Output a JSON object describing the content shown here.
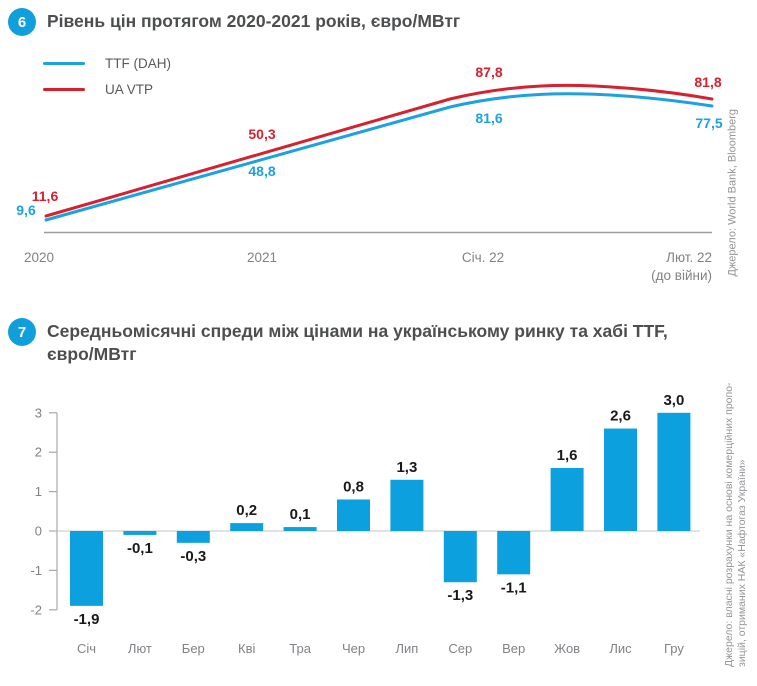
{
  "colors": {
    "accent_blue": "#119fdb",
    "bar_blue": "#0ca0de",
    "line_blue": "#1da2df",
    "line_red": "#d6212e",
    "title_gray": "#4d4e50",
    "axis_gray": "#808285"
  },
  "chart_data": [
    {
      "type": "line",
      "number": "6",
      "title": "Рівень цін протягом 2020-2021 років, євро/МВтг",
      "x": [
        "2020",
        "2021",
        "Січ. 22",
        "Лют. 22"
      ],
      "x_last_note": "(до війни)",
      "series": [
        {
          "name": "TTF (DAH)",
          "color": "#1da2df",
          "values": [
            9.6,
            48.8,
            81.6,
            77.5
          ],
          "value_labels": [
            "9,6",
            "48,8",
            "81,6",
            "77,5"
          ]
        },
        {
          "name": "UA VTP",
          "color": "#d6212e",
          "values": [
            11.6,
            50.3,
            87.8,
            81.8
          ],
          "value_labels": [
            "11,6",
            "50,3",
            "87,8",
            "81,8"
          ]
        }
      ],
      "legend_position": "top-left",
      "grid": false,
      "source": "Джерело: World Bank, Bloomberg"
    },
    {
      "type": "bar",
      "number": "7",
      "title": "Середньомісячні спреди між цінами на українському ринку та хабі TTF, євро/МВтг",
      "categories": [
        "Січ",
        "Лют",
        "Бер",
        "Кві",
        "Тра",
        "Чер",
        "Лип",
        "Сер",
        "Вер",
        "Жов",
        "Лис",
        "Гру"
      ],
      "values": [
        -1.9,
        -0.1,
        -0.3,
        0.2,
        0.1,
        0.8,
        1.3,
        -1.3,
        -1.1,
        1.6,
        2.6,
        3.0
      ],
      "value_labels": [
        "-1,9",
        "-0,1",
        "-0,3",
        "0,2",
        "0,1",
        "0,8",
        "1,3",
        "-1,3",
        "-1,1",
        "1,6",
        "2,6",
        "3,0"
      ],
      "bar_color": "#0ca0de",
      "ylim": [
        -2,
        3
      ],
      "yticks": [
        "3",
        "2",
        "1",
        "0",
        "-1",
        "-2"
      ],
      "grid": false,
      "source_lines": [
        "Джерело: власні розрахунки на основі комерційних пропо-",
        "зицій, отриманих НАК «Нафтогаз України»"
      ]
    }
  ]
}
